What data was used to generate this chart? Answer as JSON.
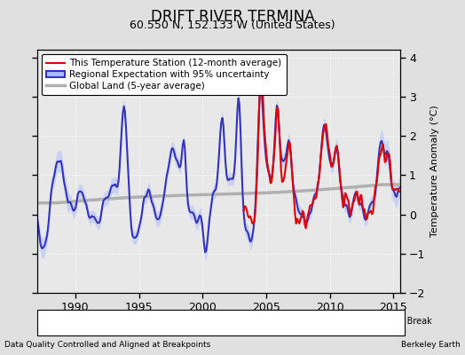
{
  "title": "DRIFT RIVER TERMINA",
  "subtitle": "60.550 N, 152.133 W (United States)",
  "ylabel": "Temperature Anomaly (°C)",
  "xlabel_left": "Data Quality Controlled and Aligned at Breakpoints",
  "xlabel_right": "Berkeley Earth",
  "xlim": [
    1987.0,
    2015.5
  ],
  "ylim": [
    -2.0,
    4.2
  ],
  "yticks": [
    -2,
    -1,
    0,
    1,
    2,
    3,
    4
  ],
  "xticks": [
    1990,
    1995,
    2000,
    2005,
    2010,
    2015
  ],
  "legend_items": [
    {
      "label": "This Temperature Station (12-month average)",
      "color": "#dd0000",
      "lw": 1.5
    },
    {
      "label": "Regional Expectation with 95% uncertainty",
      "color": "#3333bb",
      "lw": 1.5
    },
    {
      "label": "Global Land (5-year average)",
      "color": "#b0b0b0",
      "lw": 2.5
    }
  ],
  "uncertainty_color": "#aabbff",
  "uncertainty_alpha": 0.5,
  "station_move_color": "#cc0000",
  "record_gap_color": "#008800",
  "time_obs_color": "#3333bb",
  "empirical_break_color": "#333333",
  "bg_color": "#e0e0e0",
  "plot_bg_color": "#e8e8e8",
  "grid_color": "#ffffff",
  "grid_linestyle": "dotted",
  "title_fontsize": 12,
  "subtitle_fontsize": 9,
  "legend_fontsize": 7.5,
  "axis_fontsize": 8,
  "tick_fontsize": 9
}
